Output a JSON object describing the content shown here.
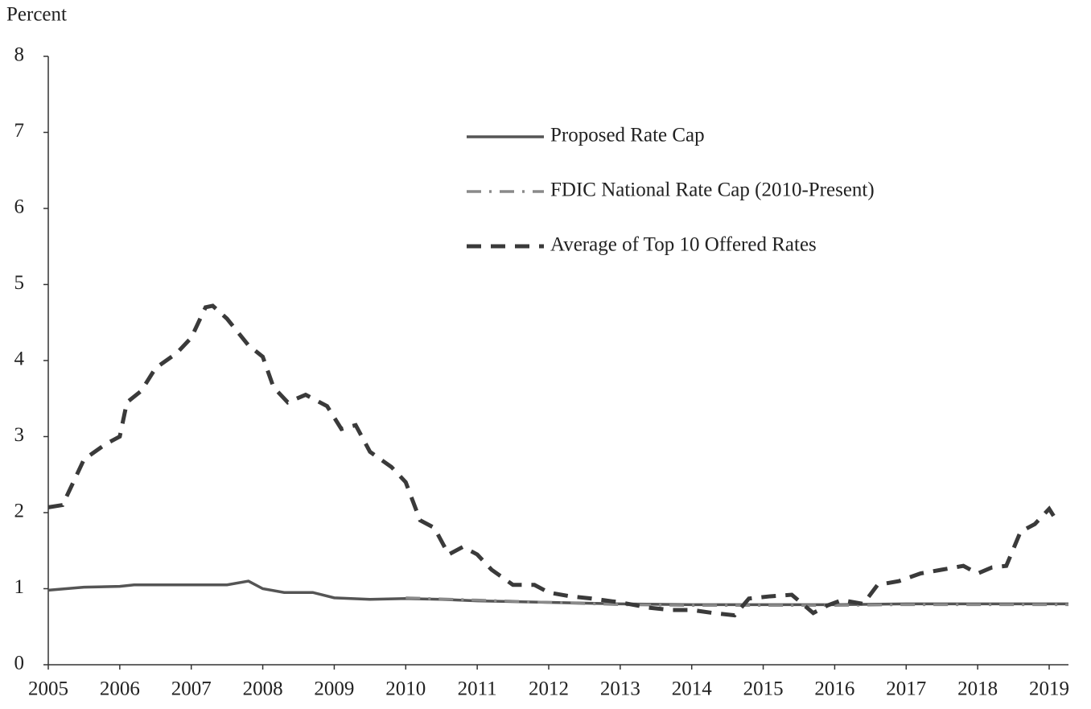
{
  "chart_data": {
    "type": "line",
    "y_label": "Percent",
    "xlim": [
      2005,
      2019.27
    ],
    "xticks": [
      2005,
      2006,
      2007,
      2008,
      2009,
      2010,
      2011,
      2012,
      2013,
      2014,
      2015,
      2016,
      2017,
      2018,
      2019
    ],
    "ylim": [
      0,
      8
    ],
    "yticks": [
      0,
      1,
      2,
      3,
      4,
      5,
      6,
      7,
      8
    ],
    "grid": false,
    "series": [
      {
        "name": "Proposed Rate Cap",
        "color": "#555555",
        "x": [
          2005,
          2005.5,
          2006,
          2006.2,
          2006.5,
          2007,
          2007.5,
          2007.8,
          2008.0,
          2008.3,
          2008.7,
          2009.0,
          2009.5,
          2010,
          2010.5,
          2011,
          2012,
          2013,
          2014,
          2015,
          2016,
          2017,
          2018,
          2019.27
        ],
        "values": [
          0.98,
          1.02,
          1.03,
          1.05,
          1.05,
          1.05,
          1.05,
          1.1,
          1.0,
          0.95,
          0.95,
          0.88,
          0.86,
          0.87,
          0.86,
          0.84,
          0.82,
          0.8,
          0.79,
          0.79,
          0.79,
          0.8,
          0.8,
          0.8
        ]
      },
      {
        "name": "FDIC National Rate Cap (2010-Present)",
        "color": "#8a8a8a",
        "x": [
          2010,
          2011,
          2012,
          2013,
          2014,
          2015,
          2016,
          2017,
          2018,
          2019.27
        ],
        "values": [
          0.88,
          0.85,
          0.82,
          0.79,
          0.78,
          0.78,
          0.78,
          0.79,
          0.79,
          0.79
        ]
      },
      {
        "name": "Average of Top 10 Offered Rates",
        "color": "#3a3a3a",
        "x": [
          2005.0,
          2005.2,
          2005.5,
          2005.8,
          2006.0,
          2006.1,
          2006.3,
          2006.5,
          2006.8,
          2007.0,
          2007.2,
          2007.3,
          2007.5,
          2007.8,
          2008.0,
          2008.15,
          2008.35,
          2008.6,
          2008.9,
          2009.1,
          2009.3,
          2009.5,
          2009.8,
          2010.0,
          2010.2,
          2010.4,
          2010.6,
          2010.8,
          2011.0,
          2011.2,
          2011.5,
          2011.8,
          2012.0,
          2012.3,
          2012.6,
          2013.0,
          2013.4,
          2013.7,
          2014.0,
          2014.3,
          2014.6,
          2014.8,
          2015.1,
          2015.4,
          2015.7,
          2015.9,
          2016.1,
          2016.4,
          2016.6,
          2016.9,
          2017.2,
          2017.5,
          2017.8,
          2018.0,
          2018.2,
          2018.4,
          2018.6,
          2018.8,
          2019.0,
          2019.1
        ],
        "values": [
          2.07,
          2.1,
          2.7,
          2.9,
          3.0,
          3.45,
          3.6,
          3.9,
          4.1,
          4.3,
          4.7,
          4.72,
          4.55,
          4.2,
          4.05,
          3.65,
          3.45,
          3.55,
          3.4,
          3.1,
          3.15,
          2.8,
          2.6,
          2.4,
          1.9,
          1.8,
          1.45,
          1.55,
          1.45,
          1.25,
          1.05,
          1.05,
          0.95,
          0.9,
          0.87,
          0.82,
          0.75,
          0.72,
          0.72,
          0.68,
          0.65,
          0.87,
          0.9,
          0.92,
          0.68,
          0.78,
          0.85,
          0.8,
          1.05,
          1.1,
          1.2,
          1.25,
          1.3,
          1.2,
          1.28,
          1.3,
          1.75,
          1.85,
          2.05,
          1.9
        ]
      }
    ]
  }
}
